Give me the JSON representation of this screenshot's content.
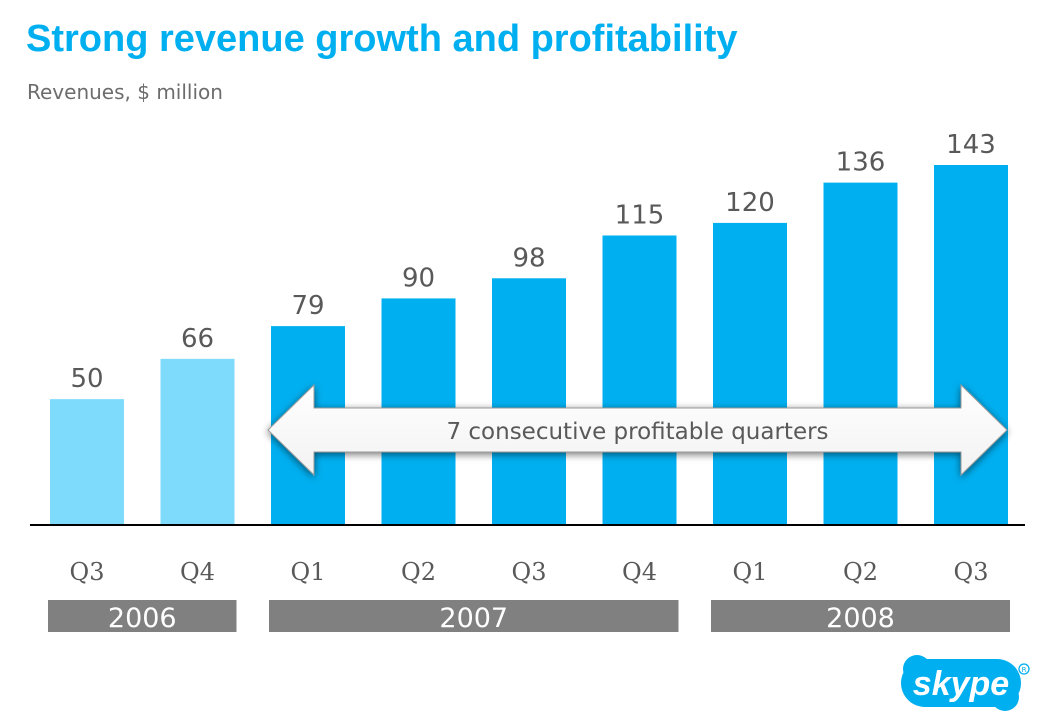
{
  "title": "Strong revenue growth and profitability",
  "subtitle": "Revenues, $ million",
  "chart_data": {
    "type": "bar",
    "title": "Strong revenue growth and profitability",
    "ylabel": "Revenues, $ million",
    "xlabel": "",
    "ylim": [
      0,
      160
    ],
    "grid": false,
    "categories": [
      "Q3",
      "Q4",
      "Q1",
      "Q2",
      "Q3",
      "Q4",
      "Q1",
      "Q2",
      "Q3"
    ],
    "years": [
      "2006",
      "2006",
      "2007",
      "2007",
      "2007",
      "2007",
      "2008",
      "2008",
      "2008"
    ],
    "values": [
      50,
      66,
      79,
      90,
      98,
      115,
      120,
      136,
      143
    ],
    "series": [
      {
        "name": "Revenues",
        "values": [
          50,
          66,
          79,
          90,
          98,
          115,
          120,
          136,
          143
        ]
      }
    ],
    "year_groups": [
      {
        "label": "2006",
        "start": 0,
        "end": 1
      },
      {
        "label": "2007",
        "start": 2,
        "end": 5
      },
      {
        "label": "2008",
        "start": 6,
        "end": 8
      }
    ],
    "profitable_from_index": 2,
    "annotation": "7 consecutive profitable quarters"
  },
  "colors": {
    "title": "#00aff0",
    "bar_profitable": "#00aff0",
    "bar_early": "#7fdbfc",
    "value_label": "#595959",
    "axis": "#000000",
    "year_band": "#808080",
    "year_text": "#ffffff",
    "logo": "#00aff0"
  },
  "logo": {
    "text": "skype"
  }
}
